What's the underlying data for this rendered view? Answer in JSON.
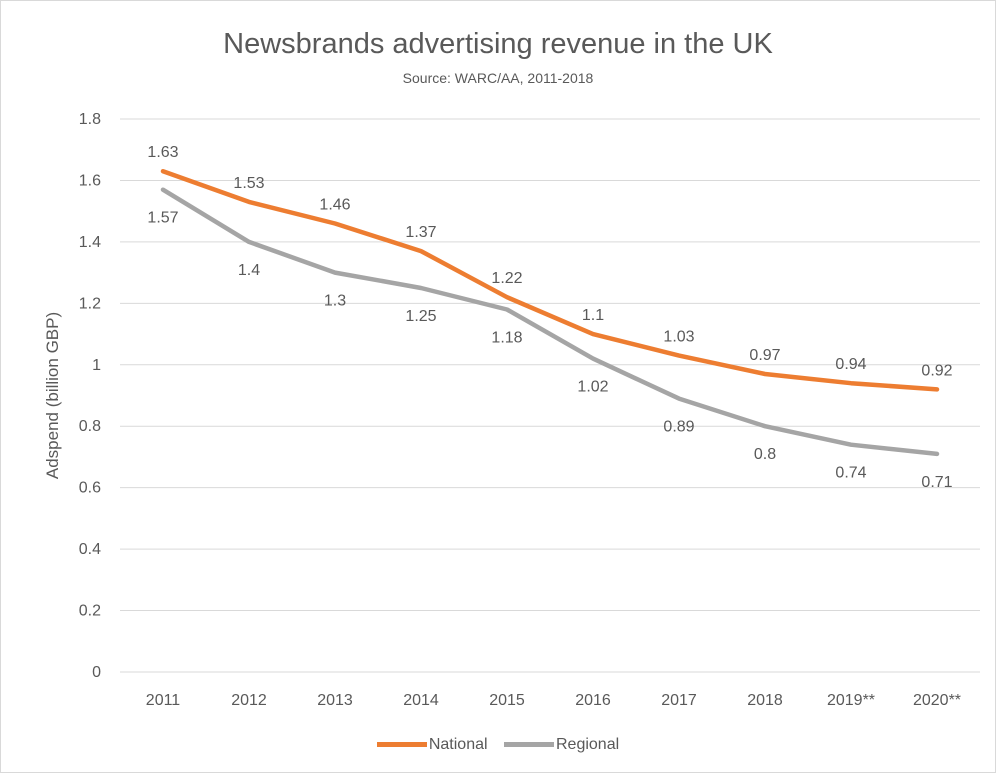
{
  "chart_data": {
    "type": "line",
    "title": "Newsbrands advertising revenue in the UK",
    "subtitle": "Source: WARC/AA, 2011-2018",
    "xlabel": "",
    "ylabel": "Adspend (billion GBP)",
    "categories": [
      "2011",
      "2012",
      "2013",
      "2014",
      "2015",
      "2016",
      "2017",
      "2018",
      "2019**",
      "2020**"
    ],
    "ylim": [
      0,
      1.8
    ],
    "yticks": [
      "0",
      "0.2",
      "0.4",
      "0.6",
      "0.8",
      "1",
      "1.2",
      "1.4",
      "1.6",
      "1.8"
    ],
    "grid": true,
    "legend_position": "bottom",
    "series": [
      {
        "name": "National",
        "color": "#ed7d31",
        "values": [
          1.63,
          1.53,
          1.46,
          1.37,
          1.22,
          1.1,
          1.03,
          0.97,
          0.94,
          0.92
        ],
        "labels": [
          "1.63",
          "1.53",
          "1.46",
          "1.37",
          "1.22",
          "1.1",
          "1.03",
          "0.97",
          "0.94",
          "0.92"
        ]
      },
      {
        "name": "Regional",
        "color": "#a5a5a5",
        "values": [
          1.57,
          1.4,
          1.3,
          1.25,
          1.18,
          1.02,
          0.89,
          0.8,
          0.74,
          0.71
        ],
        "labels": [
          "1.57",
          "1.4",
          "1.3",
          "1.25",
          "1.18",
          "1.02",
          "0.89",
          "0.8",
          "0.74",
          "0.71"
        ]
      }
    ]
  }
}
